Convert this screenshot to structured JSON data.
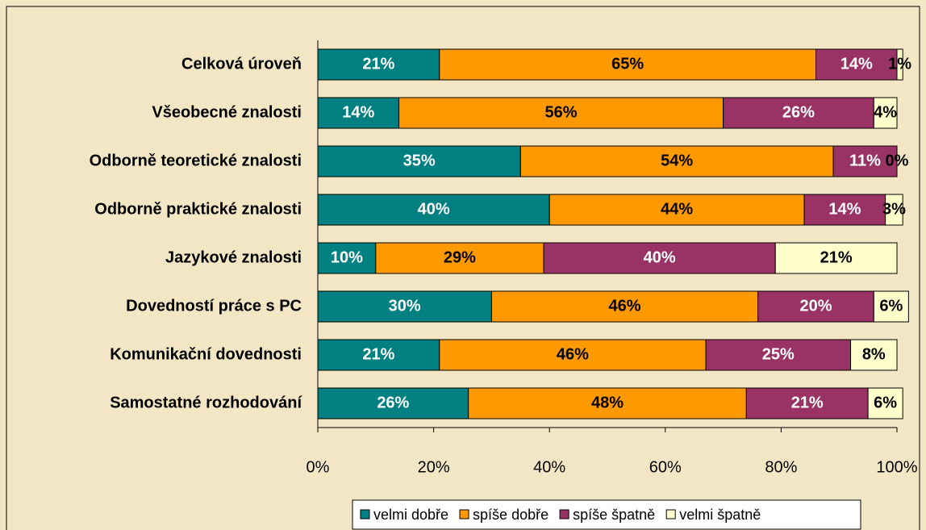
{
  "chart_data": {
    "type": "stacked_bar_horizontal",
    "categories": [
      "Celková úroveň",
      "Všeobecné znalosti",
      "Odborně teoretické znalosti",
      "Odborně praktické znalosti",
      "Jazykové znalosti",
      "Dovedností práce s PC",
      "Komunikační dovednosti",
      "Samostatné rozhodování"
    ],
    "series": [
      {
        "name": "velmi dobře",
        "color": "#008080",
        "values": [
          21,
          14,
          35,
          40,
          10,
          30,
          21,
          26
        ],
        "value_labels": [
          "21%",
          "14%",
          "35%",
          "40%",
          "10%",
          "30%",
          "21%",
          "26%"
        ]
      },
      {
        "name": "spíše dobře",
        "color": "#ff9900",
        "values": [
          65,
          56,
          54,
          44,
          29,
          46,
          46,
          48
        ],
        "value_labels": [
          "65%",
          "56%",
          "54%",
          "44%",
          "29%",
          "46%",
          "46%",
          "48%"
        ]
      },
      {
        "name": "spíše špatně",
        "color": "#993366",
        "values": [
          14,
          26,
          11,
          14,
          40,
          20,
          25,
          21
        ],
        "value_labels": [
          "14%",
          "26%",
          "11%",
          "14%",
          "40%",
          "20%",
          "25%",
          "21%"
        ]
      },
      {
        "name": "velmi špatně",
        "color": "#ffffcc",
        "values": [
          1,
          4,
          0,
          3,
          21,
          6,
          8,
          6
        ],
        "value_labels": [
          "1%",
          "4%",
          "0%",
          "3%",
          "21%",
          "6%",
          "8%",
          "6%"
        ]
      }
    ],
    "xlim": [
      0,
      100
    ],
    "xticks": [
      {
        "value": 0,
        "label": "0%"
      },
      {
        "value": 20,
        "label": "20%"
      },
      {
        "value": 40,
        "label": "40%"
      },
      {
        "value": 60,
        "label": "60%"
      },
      {
        "value": 80,
        "label": "80%"
      },
      {
        "value": 100,
        "label": "100%"
      }
    ],
    "grid": false,
    "legend": "bottom"
  }
}
